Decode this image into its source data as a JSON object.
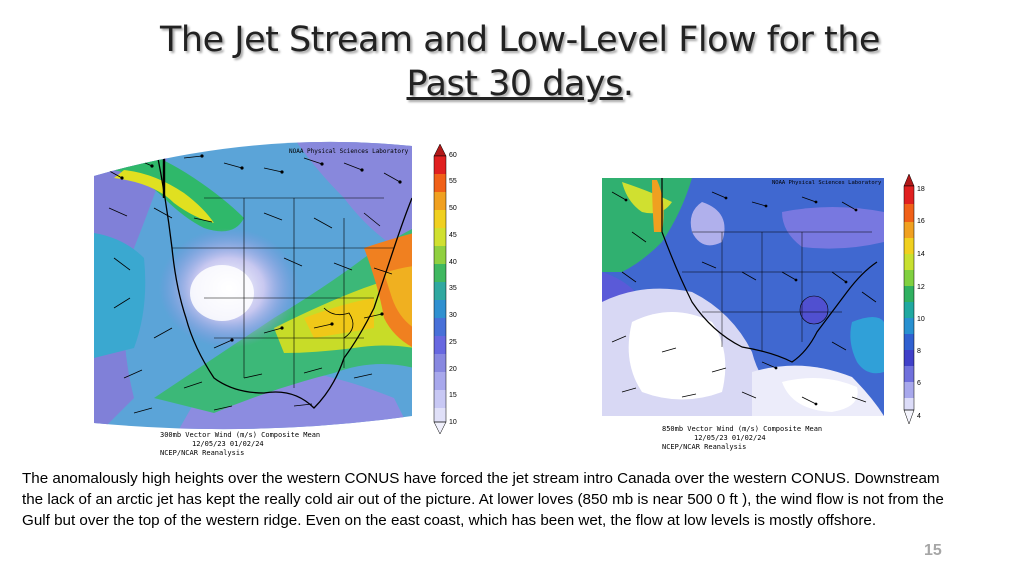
{
  "slide": {
    "title_line1": "The Jet Stream and Low-Level Flow for the",
    "title_line2_underlined": "Past 30 days",
    "title_line2_suffix": ".",
    "page_number": "15"
  },
  "maps": [
    {
      "id": "map-300mb",
      "credit": "NOAA Physical Sciences Laboratory",
      "caption_line1": "300mb Vector Wind (m/s) Composite Mean",
      "caption_line2": "12/05/23 01/02/24",
      "caption_line3": "NCEP/NCAR Reanalysis",
      "colorbar_ticks": [
        "60",
        "55",
        "50",
        "45",
        "40",
        "35",
        "30",
        "25",
        "20",
        "15",
        "10"
      ]
    },
    {
      "id": "map-850mb",
      "credit": "NOAA Physical Sciences Laboratory",
      "caption_line1": "850mb Vector Wind (m/s) Composite Mean",
      "caption_line2": "12/05/23 01/02/24",
      "caption_line3": "NCEP/NCAR Reanalysis",
      "colorbar_ticks": [
        "18",
        "16",
        "14",
        "12",
        "10",
        "8",
        "6",
        "4"
      ]
    }
  ],
  "body_text": "The anomalously  high heights over the western CONUS have forced the jet stream intro Canada  over the western CONUS.  Downstream the lack of an arctic jet has kept the really cold air out of the picture.  At lower loves (850 mb is near 500 0 ft ), the wind flow is not from the Gulf but over the top of the western ridge. Even on the east coast, which has been wet, the flow at low levels is mostly offshore."
}
